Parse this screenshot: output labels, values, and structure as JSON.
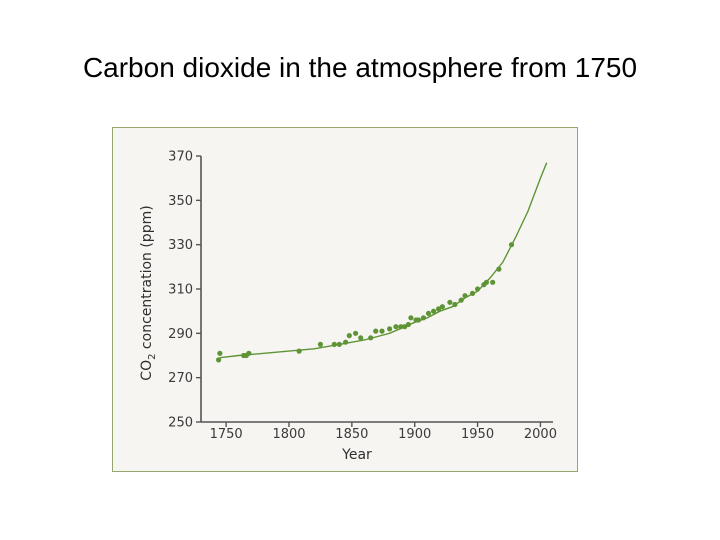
{
  "slide": {
    "title": "Carbon dioxide in the atmosphere from 1750"
  },
  "chart_data": {
    "type": "scatter",
    "xlabel": "Year",
    "ylabel_parts": [
      "CO",
      "2",
      " concentration (ppm)"
    ],
    "xlim": [
      1730,
      2010
    ],
    "ylim": [
      250,
      370
    ],
    "x_ticks": [
      1750,
      1800,
      1850,
      1900,
      1950,
      2000
    ],
    "y_ticks": [
      250,
      270,
      290,
      310,
      330,
      350,
      370
    ],
    "grid": false,
    "colors": {
      "points": "#5e9435",
      "curve": "#5e9435",
      "axis": "#555555",
      "frame": "#96a66e",
      "background": "#f7f5f2"
    },
    "series": [
      {
        "type": "scatter",
        "x": [
          1744,
          1745,
          1764,
          1766,
          1768,
          1808,
          1825,
          1836,
          1840,
          1845,
          1848,
          1853,
          1857,
          1865,
          1869,
          1874,
          1880,
          1885,
          1889,
          1892,
          1895,
          1897,
          1901,
          1903,
          1907,
          1911,
          1915,
          1919,
          1922,
          1928,
          1932,
          1937,
          1940,
          1946,
          1950,
          1955,
          1957,
          1962,
          1967,
          1977
        ],
        "y": [
          278,
          281,
          280,
          280,
          281,
          282,
          285,
          285,
          285,
          286,
          289,
          290,
          288,
          288,
          291,
          291,
          292,
          293,
          293,
          293,
          294,
          297,
          296,
          296,
          297,
          299,
          300,
          301,
          302,
          304,
          303,
          305,
          307,
          308,
          310,
          312,
          313,
          313,
          319,
          330
        ]
      },
      {
        "type": "line",
        "x": [
          1745,
          1760,
          1780,
          1800,
          1820,
          1840,
          1860,
          1880,
          1900,
          1910,
          1920,
          1930,
          1940,
          1950,
          1960,
          1970,
          1980,
          1990,
          2000,
          2005
        ],
        "y": [
          279,
          280,
          281,
          282,
          283,
          285,
          287,
          290,
          295,
          297,
          300,
          302,
          306,
          309,
          315,
          322,
          333,
          345,
          360,
          367
        ]
      }
    ]
  }
}
